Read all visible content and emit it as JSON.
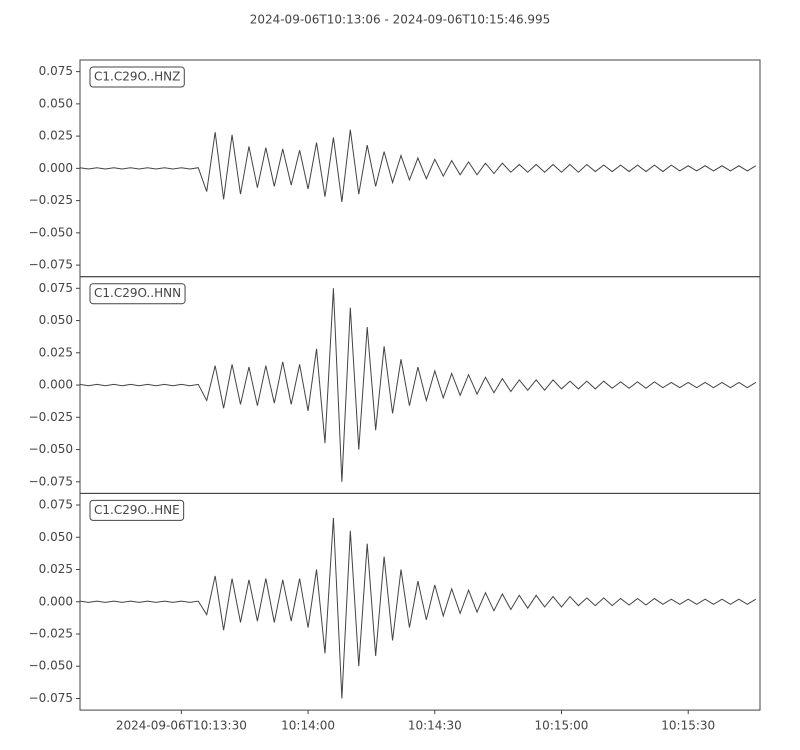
{
  "chart_data": {
    "type": "line",
    "title": "2024-09-06T10:13:06  -  2024-09-06T10:15:46.995",
    "xlim": [
      0,
      160.995
    ],
    "xticks": [
      {
        "value": 24,
        "label": "2024-09-06T10:13:30"
      },
      {
        "value": 54,
        "label": "10:14:00"
      },
      {
        "value": 84,
        "label": "10:14:30"
      },
      {
        "value": 114,
        "label": "10:15:00"
      },
      {
        "value": 144,
        "label": "10:15:30"
      }
    ],
    "x": [
      0,
      2,
      4,
      6,
      8,
      10,
      12,
      14,
      16,
      18,
      20,
      22,
      24,
      26,
      28,
      30,
      32,
      34,
      36,
      38,
      40,
      42,
      44,
      46,
      48,
      50,
      52,
      54,
      56,
      58,
      60,
      62,
      64,
      66,
      68,
      70,
      72,
      74,
      76,
      78,
      80,
      82,
      84,
      86,
      88,
      90,
      92,
      94,
      96,
      98,
      100,
      102,
      104,
      106,
      108,
      110,
      112,
      114,
      116,
      118,
      120,
      122,
      124,
      126,
      128,
      130,
      132,
      134,
      136,
      138,
      140,
      142,
      144,
      146,
      148,
      150,
      152,
      154,
      156,
      158,
      160
    ],
    "ylim": [
      -0.084,
      0.084
    ],
    "yticks": [
      {
        "value": -0.075,
        "label": "−0.075"
      },
      {
        "value": -0.05,
        "label": "−0.050"
      },
      {
        "value": -0.025,
        "label": "−0.025"
      },
      {
        "value": 0,
        "label": "0.000"
      },
      {
        "value": 0.025,
        "label": "0.025"
      },
      {
        "value": 0.05,
        "label": "0.050"
      },
      {
        "value": 0.075,
        "label": "0.075"
      }
    ],
    "series": [
      {
        "name": "C1.C29O..HNZ",
        "color": "#444444",
        "values": [
          0.0005,
          -0.0005,
          0.0005,
          -0.0005,
          0.0005,
          -0.0005,
          0.0005,
          -0.0005,
          0.0005,
          -0.0005,
          0.0005,
          -0.0005,
          0.0005,
          -0.0005,
          0.0005,
          -0.018,
          0.028,
          -0.024,
          0.026,
          -0.02,
          0.017,
          -0.015,
          0.016,
          -0.014,
          0.015,
          -0.013,
          0.014,
          -0.016,
          0.02,
          -0.022,
          0.024,
          -0.026,
          0.03,
          -0.02,
          0.018,
          -0.014,
          0.013,
          -0.011,
          0.01,
          -0.009,
          0.008,
          -0.008,
          0.007,
          -0.006,
          0.006,
          -0.005,
          0.005,
          -0.005,
          0.004,
          -0.004,
          0.004,
          -0.003,
          0.003,
          -0.003,
          0.003,
          -0.003,
          0.003,
          -0.003,
          0.003,
          -0.003,
          0.003,
          -0.0025,
          0.0025,
          -0.0025,
          0.0025,
          -0.0025,
          0.0025,
          -0.0025,
          0.0025,
          -0.0025,
          0.0025,
          -0.002,
          0.002,
          -0.002,
          0.002,
          -0.002,
          0.002,
          -0.002,
          0.002,
          -0.002,
          0.002
        ]
      },
      {
        "name": "C1.C29O..HNN",
        "color": "#444444",
        "values": [
          0.0005,
          -0.0005,
          0.0005,
          -0.0005,
          0.0005,
          -0.0005,
          0.0005,
          -0.0005,
          0.0005,
          -0.0005,
          0.0005,
          -0.0005,
          0.0005,
          -0.0005,
          0.0005,
          -0.012,
          0.015,
          -0.018,
          0.016,
          -0.015,
          0.014,
          -0.016,
          0.015,
          -0.014,
          0.018,
          -0.015,
          0.016,
          -0.02,
          0.028,
          -0.045,
          0.075,
          -0.075,
          0.06,
          -0.05,
          0.045,
          -0.035,
          0.03,
          -0.022,
          0.02,
          -0.016,
          0.014,
          -0.012,
          0.011,
          -0.01,
          0.009,
          -0.008,
          0.008,
          -0.007,
          0.006,
          -0.006,
          0.005,
          -0.005,
          0.004,
          -0.004,
          0.004,
          -0.004,
          0.004,
          -0.003,
          0.003,
          -0.003,
          0.003,
          -0.003,
          0.003,
          -0.0025,
          0.0025,
          -0.0025,
          0.0025,
          -0.0025,
          0.0025,
          -0.002,
          0.002,
          -0.002,
          0.002,
          -0.002,
          0.002,
          -0.002,
          0.002,
          -0.002,
          0.002,
          -0.002,
          0.002
        ]
      },
      {
        "name": "C1.C29O..HNE",
        "color": "#444444",
        "values": [
          0.0005,
          -0.0005,
          0.0005,
          -0.0005,
          0.0005,
          -0.0005,
          0.0005,
          -0.0005,
          0.0005,
          -0.0005,
          0.0005,
          -0.0005,
          0.0005,
          -0.0005,
          0.0005,
          -0.01,
          0.02,
          -0.022,
          0.018,
          -0.016,
          0.017,
          -0.015,
          0.018,
          -0.016,
          0.017,
          -0.015,
          0.018,
          -0.02,
          0.025,
          -0.04,
          0.065,
          -0.075,
          0.055,
          -0.05,
          0.045,
          -0.042,
          0.035,
          -0.03,
          0.025,
          -0.02,
          0.016,
          -0.014,
          0.013,
          -0.011,
          0.01,
          -0.009,
          0.009,
          -0.008,
          0.007,
          -0.007,
          0.006,
          -0.006,
          0.005,
          -0.005,
          0.005,
          -0.004,
          0.004,
          -0.004,
          0.004,
          -0.003,
          0.003,
          -0.003,
          0.003,
          -0.003,
          0.0025,
          -0.0025,
          0.0025,
          -0.0025,
          0.0025,
          -0.002,
          0.002,
          -0.002,
          0.002,
          -0.002,
          0.002,
          -0.002,
          0.002,
          -0.002,
          0.002,
          -0.002,
          0.002
        ]
      }
    ]
  }
}
